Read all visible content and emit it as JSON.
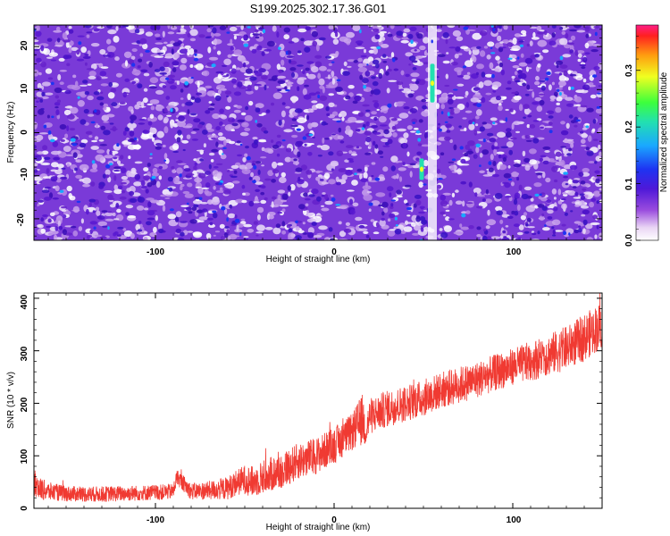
{
  "title": "S199.2025.302.17.36.G01",
  "chart_data": [
    {
      "type": "heatmap",
      "xlabel": "Height of straight line (km)",
      "ylabel": "Frequency (Hz)",
      "xlim": [
        -168,
        150
      ],
      "ylim": [
        -25,
        25
      ],
      "xticks": [
        -100,
        0,
        100
      ],
      "yticks": [
        -20,
        -10,
        0,
        10,
        20
      ],
      "colorbar": {
        "label": "Normalized spectral amplitude",
        "range": [
          0.0,
          0.38
        ],
        "ticks": [
          0.0,
          0.1,
          0.2,
          0.3
        ],
        "tick_labels": [
          "0.0",
          "0.1",
          "0.2",
          "0.3"
        ]
      },
      "features": [
        {
          "description": "near-zero amplitude vertical band",
          "x": 55
        },
        {
          "description": "high amplitude signal",
          "x": 55,
          "y_range": [
            7,
            16
          ]
        },
        {
          "description": "high amplitude signal",
          "x": 49,
          "y_range": [
            -11,
            -6
          ]
        }
      ]
    },
    {
      "type": "line",
      "xlabel": "Height of straight line (km)",
      "ylabel": "SNR (10 * v/v)",
      "xlim": [
        -168,
        150
      ],
      "ylim": [
        0,
        410
      ],
      "xticks": [
        -100,
        0,
        100
      ],
      "yticks": [
        0,
        100,
        200,
        300,
        400
      ],
      "series": [
        {
          "color": "#f03a32",
          "x": [
            -168,
            -165,
            -160,
            -150,
            -140,
            -130,
            -120,
            -110,
            -100,
            -90,
            -88,
            -80,
            -70,
            -60,
            -55,
            -50,
            -45,
            -40,
            -30,
            -20,
            -10,
            0,
            10,
            16,
            18,
            20,
            30,
            40,
            50,
            60,
            70,
            80,
            90,
            100,
            110,
            120,
            130,
            140,
            150
          ],
          "y": [
            50,
            38,
            32,
            28,
            27,
            27,
            28,
            29,
            30,
            32,
            60,
            32,
            34,
            38,
            48,
            55,
            50,
            60,
            70,
            90,
            100,
            120,
            145,
            170,
            150,
            175,
            190,
            200,
            210,
            225,
            235,
            245,
            258,
            270,
            280,
            292,
            305,
            325,
            350
          ],
          "noise": [
            25,
            22,
            18,
            15,
            15,
            15,
            15,
            15,
            15,
            15,
            15,
            16,
            18,
            22,
            25,
            28,
            30,
            32,
            35,
            35,
            35,
            35,
            35,
            50,
            35,
            35,
            35,
            35,
            35,
            35,
            35,
            35,
            35,
            35,
            38,
            40,
            42,
            45,
            45
          ]
        }
      ]
    }
  ]
}
